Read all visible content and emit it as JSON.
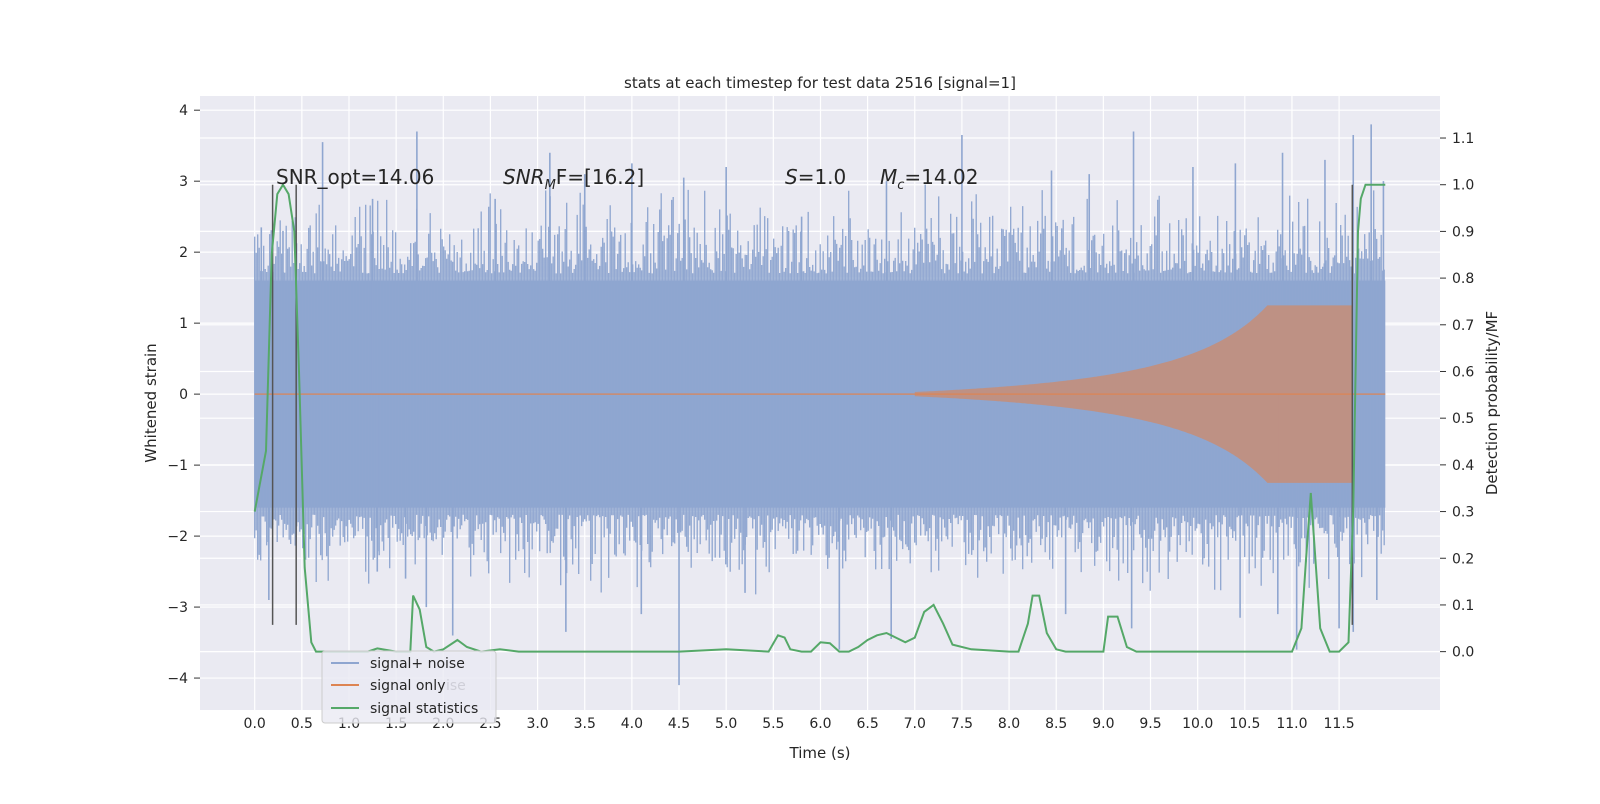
{
  "chart_data": {
    "type": "line",
    "title": "stats at each timestep for test data 2516 [signal=1]",
    "xlabel": "Time (s)",
    "ylabel": "Whitened strain",
    "ylabel_right": "Detection probability/MF",
    "xlim": [
      -0.58,
      12.57
    ],
    "ylim": [
      -4.45,
      4.2
    ],
    "ylim_right": [
      -0.125,
      1.19
    ],
    "x_ticks": [
      "0.0",
      "0.5",
      "1.0",
      "1.5",
      "2.0",
      "2.5",
      "3.0",
      "3.5",
      "4.0",
      "4.5",
      "5.0",
      "5.5",
      "6.0",
      "6.5",
      "7.0",
      "7.5",
      "8.0",
      "8.5",
      "9.0",
      "9.5",
      "10.0",
      "10.5",
      "11.0",
      "11.5"
    ],
    "y_ticks": [
      "4",
      "3",
      "2",
      "1",
      "0",
      "−1",
      "−2",
      "−3",
      "−4"
    ],
    "y_ticks_right": [
      "1.1",
      "1.0",
      "0.9",
      "0.8",
      "0.7",
      "0.6",
      "0.5",
      "0.4",
      "0.3",
      "0.2",
      "0.1",
      "0.0"
    ],
    "grid": true,
    "legend_position": "lower-left",
    "legend": [
      "signal+ noise",
      "signal only",
      "signal statistics"
    ],
    "legend_ghost_text": "ise",
    "annotations": {
      "snr_opt": "SNR_opt=14.06",
      "snr_mf_main": "SNR",
      "snr_mf_sub": "M",
      "snr_mf_rest": "F=[16.2]",
      "s_main": "S",
      "s_rest": "=1.0",
      "mc_main": "M",
      "mc_sub": "c",
      "mc_rest": "=14.02"
    },
    "colors": {
      "noise": "#8fa6d0",
      "signal": "#dd8452",
      "stats": "#55a868",
      "vline": "#555555",
      "background": "#eaeaf2",
      "grid": "#ffffff"
    },
    "noise_series": {
      "name": "signal+ noise",
      "x_range": [
        0.0,
        11.99
      ],
      "typical_envelope": [
        1.6,
        -1.6
      ],
      "spikes": [
        [
          0.07,
          2.35
        ],
        [
          0.3,
          2.3
        ],
        [
          0.72,
          3.55
        ],
        [
          1.25,
          2.75
        ],
        [
          1.72,
          3.7
        ],
        [
          2.55,
          2.75
        ],
        [
          3.13,
          3.4
        ],
        [
          3.5,
          3.1
        ],
        [
          4.0,
          3.25
        ],
        [
          4.55,
          3.05
        ],
        [
          5.0,
          3.2
        ],
        [
          5.8,
          2.5
        ],
        [
          6.7,
          3.0
        ],
        [
          7.5,
          3.65
        ],
        [
          8.45,
          3.15
        ],
        [
          8.85,
          3.1
        ],
        [
          9.32,
          3.7
        ],
        [
          9.95,
          3.2
        ],
        [
          10.4,
          3.25
        ],
        [
          10.9,
          3.4
        ],
        [
          11.35,
          3.3
        ],
        [
          11.65,
          3.65
        ],
        [
          11.84,
          3.8
        ],
        [
          11.97,
          3.0
        ],
        [
          0.15,
          -2.9
        ],
        [
          1.3,
          -2.5
        ],
        [
          1.6,
          -2.6
        ],
        [
          1.82,
          -3.0
        ],
        [
          2.1,
          -3.4
        ],
        [
          3.3,
          -3.35
        ],
        [
          4.1,
          -3.1
        ],
        [
          4.5,
          -4.1
        ],
        [
          5.2,
          -2.8
        ],
        [
          6.2,
          -3.6
        ],
        [
          6.75,
          -3.45
        ],
        [
          8.6,
          -3.1
        ],
        [
          9.3,
          -3.3
        ],
        [
          10.45,
          -3.15
        ],
        [
          10.85,
          -3.1
        ],
        [
          11.05,
          -3.6
        ],
        [
          11.5,
          -3.3
        ],
        [
          11.65,
          -3.35
        ],
        [
          11.9,
          -2.9
        ]
      ]
    },
    "signal_series": {
      "name": "signal only",
      "x_range": [
        0.0,
        11.99
      ],
      "envelope_start_x": 7.0,
      "peak_x": 11.64,
      "peak_amplitude": 1.25
    },
    "stats_series": {
      "name": "signal statistics",
      "x": [
        0,
        0.12,
        0.18,
        0.24,
        0.3,
        0.36,
        0.42,
        0.47,
        0.53,
        0.6,
        0.65,
        0.8,
        1.0,
        1.2,
        1.3,
        1.5,
        1.65,
        1.68,
        1.75,
        1.82,
        1.9,
        2.0,
        2.15,
        2.25,
        2.4,
        2.6,
        2.8,
        3.0,
        3.5,
        4.0,
        4.5,
        5.0,
        5.45,
        5.55,
        5.62,
        5.68,
        5.8,
        5.9,
        6.0,
        6.1,
        6.2,
        6.3,
        6.4,
        6.5,
        6.6,
        6.7,
        6.8,
        6.9,
        7.0,
        7.1,
        7.2,
        7.3,
        7.4,
        7.6,
        8.0,
        8.1,
        8.2,
        8.25,
        8.32,
        8.4,
        8.5,
        8.6,
        8.8,
        9.0,
        9.05,
        9.15,
        9.25,
        9.35,
        9.6,
        10.0,
        10.5,
        11.0,
        11.1,
        11.15,
        11.2,
        11.3,
        11.4,
        11.5,
        11.6,
        11.65,
        11.7,
        11.73,
        11.78,
        11.85,
        11.99
      ],
      "values": [
        0.3,
        0.43,
        0.85,
        0.98,
        1.0,
        0.98,
        0.9,
        0.6,
        0.18,
        0.02,
        0.0,
        0.0,
        0.0,
        0.0,
        0.007,
        0.0,
        0.0,
        0.12,
        0.09,
        0.01,
        0.0,
        0.005,
        0.025,
        0.01,
        0.0,
        0.005,
        0.0,
        0.0,
        0.0,
        0.0,
        0.0,
        0.005,
        0.0,
        0.035,
        0.03,
        0.005,
        0.0,
        0.0,
        0.02,
        0.018,
        0.0,
        0.0,
        0.01,
        0.025,
        0.035,
        0.04,
        0.03,
        0.02,
        0.03,
        0.085,
        0.1,
        0.06,
        0.015,
        0.005,
        0.0,
        0.0,
        0.06,
        0.12,
        0.12,
        0.04,
        0.005,
        0.0,
        0.0,
        0.0,
        0.075,
        0.075,
        0.01,
        0.0,
        0.0,
        0.0,
        0.0,
        0.0,
        0.05,
        0.2,
        0.34,
        0.05,
        0.0,
        0.0,
        0.02,
        0.3,
        0.9,
        0.97,
        1.0,
        1.0,
        1.0
      ]
    },
    "vertical_lines": [
      {
        "x": 0.19,
        "y0": -3.25,
        "y1": 2.95
      },
      {
        "x": 0.44,
        "y0": -3.25,
        "y1": 2.95
      },
      {
        "x": 11.64,
        "y0": -3.25,
        "y1": 2.95
      }
    ]
  }
}
